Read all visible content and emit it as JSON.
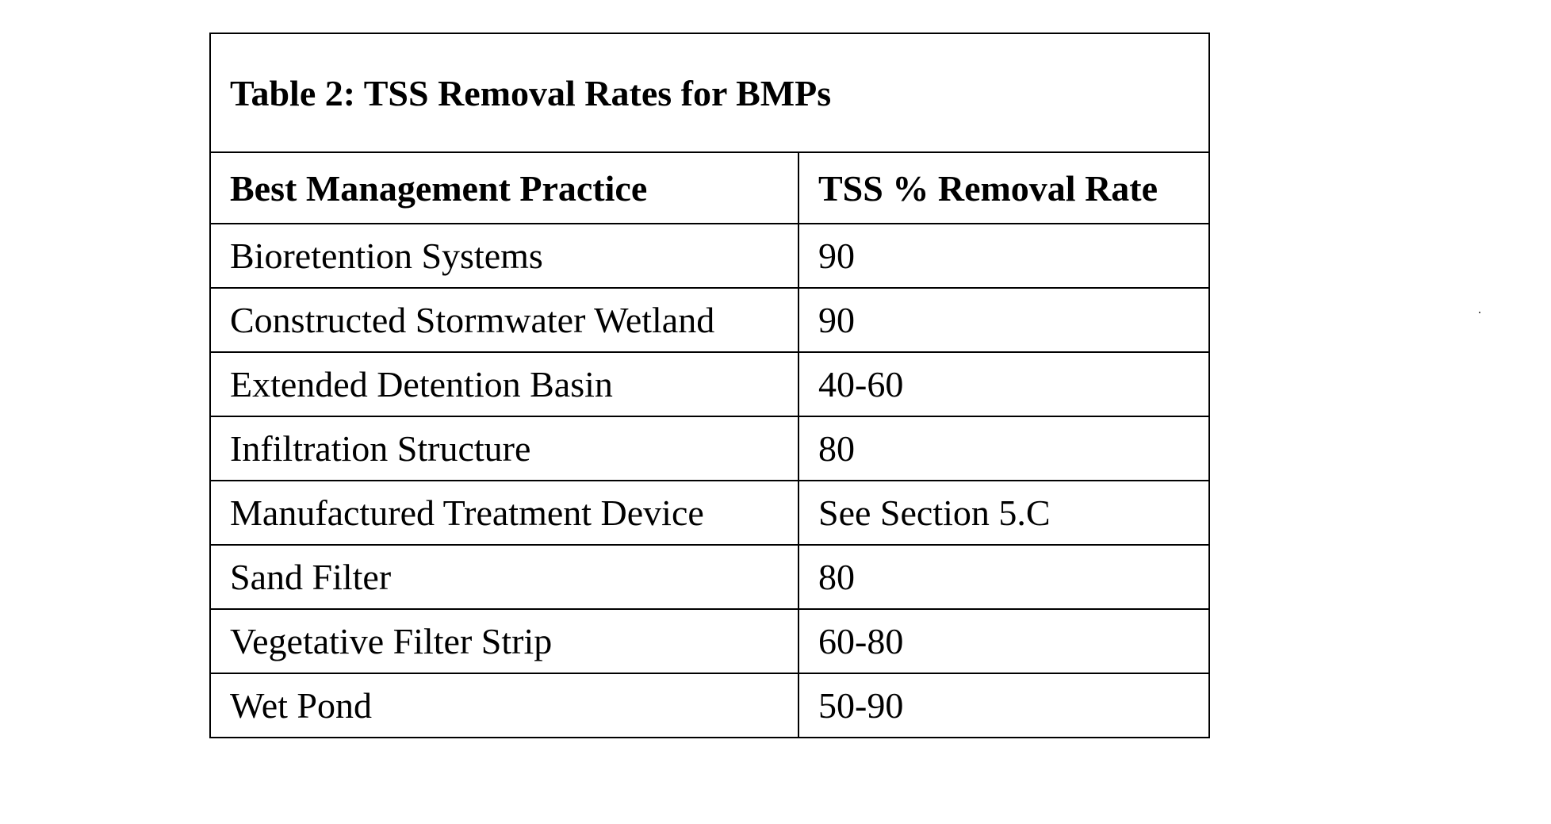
{
  "table": {
    "title": "Table 2: TSS Removal Rates for BMPs",
    "headers": [
      "Best Management Practice",
      "TSS % Removal Rate"
    ],
    "rows": [
      [
        "Bioretention Systems",
        "90"
      ],
      [
        "Constructed Stormwater Wetland",
        "90"
      ],
      [
        "Extended Detention Basin",
        "40-60"
      ],
      [
        "Infiltration Structure",
        "80"
      ],
      [
        "Manufactured Treatment Device",
        "See Section 5.C"
      ],
      [
        "Sand Filter",
        "80"
      ],
      [
        "Vegetative Filter Strip",
        "60-80"
      ],
      [
        "Wet Pond",
        "50-90"
      ]
    ]
  }
}
